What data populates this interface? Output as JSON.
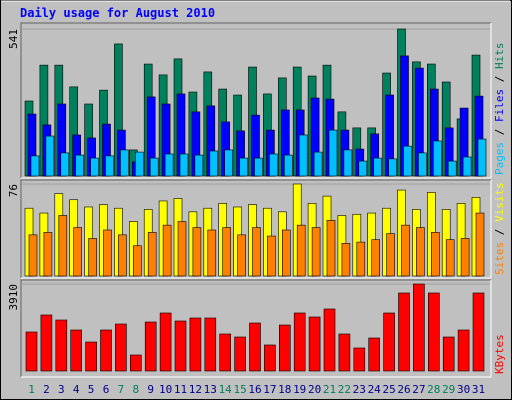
{
  "chart_data": [
    {
      "type": "bar",
      "title": "Daily usage for August 2010",
      "ylim": [
        0,
        541
      ],
      "yticks": [
        541
      ],
      "legend_separator": " / ",
      "series": [
        {
          "name": "Hits",
          "color": "#00805c",
          "values": [
            276,
            408,
            408,
            328,
            265,
            316,
            486,
            96,
            412,
            372,
            431,
            309,
            383,
            320,
            298,
            401,
            302,
            361,
            401,
            368,
            408,
            236,
            177,
            177,
            379,
            541,
            420,
            412,
            346,
            210,
            445
          ]
        },
        {
          "name": "Files",
          "color": "#0000ff",
          "values": [
            228,
            188,
            265,
            151,
            140,
            191,
            169,
            52,
            291,
            265,
            302,
            236,
            258,
            199,
            166,
            224,
            169,
            243,
            243,
            287,
            283,
            169,
            99,
            155,
            298,
            442,
            397,
            320,
            177,
            250,
            294
          ]
        },
        {
          "name": "Pages",
          "color": "#00c0ff",
          "values": [
            74,
            147,
            85,
            77,
            66,
            74,
            96,
            88,
            66,
            81,
            81,
            77,
            92,
            96,
            66,
            66,
            81,
            77,
            151,
            88,
            169,
            96,
            55,
            66,
            63,
            110,
            85,
            129,
            55,
            70,
            136
          ]
        }
      ]
    },
    {
      "type": "bar",
      "ylim": [
        0,
        76
      ],
      "yticks": [
        76
      ],
      "legend_separator": " / ",
      "series": [
        {
          "name": "Visits",
          "color": "#ffff00",
          "values": [
            56,
            52,
            68,
            63,
            57,
            59,
            56,
            45,
            55,
            62,
            64,
            53,
            56,
            60,
            57,
            59,
            56,
            53,
            76,
            60,
            66,
            50,
            51,
            52,
            56,
            71,
            55,
            69,
            55,
            60,
            65
          ]
        },
        {
          "name": "Sites",
          "color": "#ff8000",
          "values": [
            34,
            36,
            50,
            40,
            31,
            38,
            34,
            25,
            36,
            42,
            45,
            40,
            38,
            40,
            34,
            40,
            33,
            38,
            42,
            40,
            46,
            27,
            28,
            30,
            35,
            42,
            40,
            36,
            30,
            31,
            52
          ]
        }
      ]
    },
    {
      "type": "bar",
      "ylim": [
        0,
        3910
      ],
      "yticks": [
        3910
      ],
      "series": [
        {
          "name": "KBytes",
          "color": "#ff0000",
          "values": [
            1753,
            2517,
            2292,
            1843,
            1303,
            1843,
            2112,
            719,
            2202,
            2607,
            2247,
            2382,
            2382,
            1663,
            1528,
            2157,
            1169,
            2067,
            2607,
            2427,
            2787,
            1663,
            1034,
            1483,
            2607,
            3506,
            3910,
            3506,
            1528,
            1843,
            3506
          ]
        }
      ],
      "categories": [
        "1",
        "2",
        "3",
        "4",
        "5",
        "6",
        "7",
        "8",
        "9",
        "10",
        "11",
        "12",
        "13",
        "14",
        "15",
        "16",
        "17",
        "18",
        "19",
        "20",
        "21",
        "22",
        "23",
        "24",
        "25",
        "26",
        "27",
        "28",
        "29",
        "30",
        "31"
      ],
      "category_colors": [
        "#00805c",
        "#00008b",
        "#00008b",
        "#00008b",
        "#00008b",
        "#00008b",
        "#00805c",
        "#00805c",
        "#00008b",
        "#00008b",
        "#00008b",
        "#00008b",
        "#00008b",
        "#00805c",
        "#00805c",
        "#00008b",
        "#00008b",
        "#00008b",
        "#00008b",
        "#00008b",
        "#00805c",
        "#00805c",
        "#00008b",
        "#00008b",
        "#00008b",
        "#00008b",
        "#00008b",
        "#00805c",
        "#00805c",
        "#00008b",
        "#00008b"
      ]
    }
  ]
}
